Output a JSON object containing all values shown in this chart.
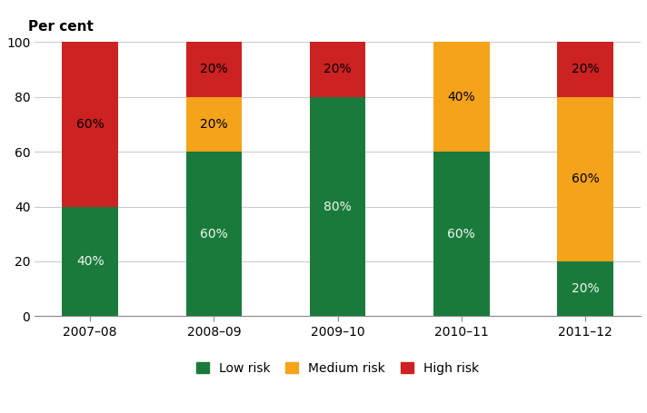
{
  "categories": [
    "2007–08",
    "2008–09",
    "2009–10",
    "2010–11",
    "2011–12"
  ],
  "low_risk": [
    40,
    60,
    80,
    60,
    20
  ],
  "medium_risk": [
    0,
    20,
    0,
    40,
    60
  ],
  "high_risk": [
    60,
    20,
    20,
    0,
    20
  ],
  "low_color": "#1a7a3c",
  "medium_color": "#f5a31a",
  "high_color": "#cc2222",
  "label_color_low": "#f0f8f0",
  "label_color_medium": "#000000",
  "label_color_high": "#000000",
  "ylabel": "Per cent",
  "ylim": [
    0,
    100
  ],
  "yticks": [
    0,
    20,
    40,
    60,
    80,
    100
  ],
  "legend_labels": [
    "Low risk",
    "Medium risk",
    "High risk"
  ],
  "bar_width": 0.45,
  "background_color": "#ffffff",
  "grid_color": "#cccccc",
  "label_fontsize": 10,
  "axis_fontsize": 10,
  "ylabel_fontsize": 11
}
